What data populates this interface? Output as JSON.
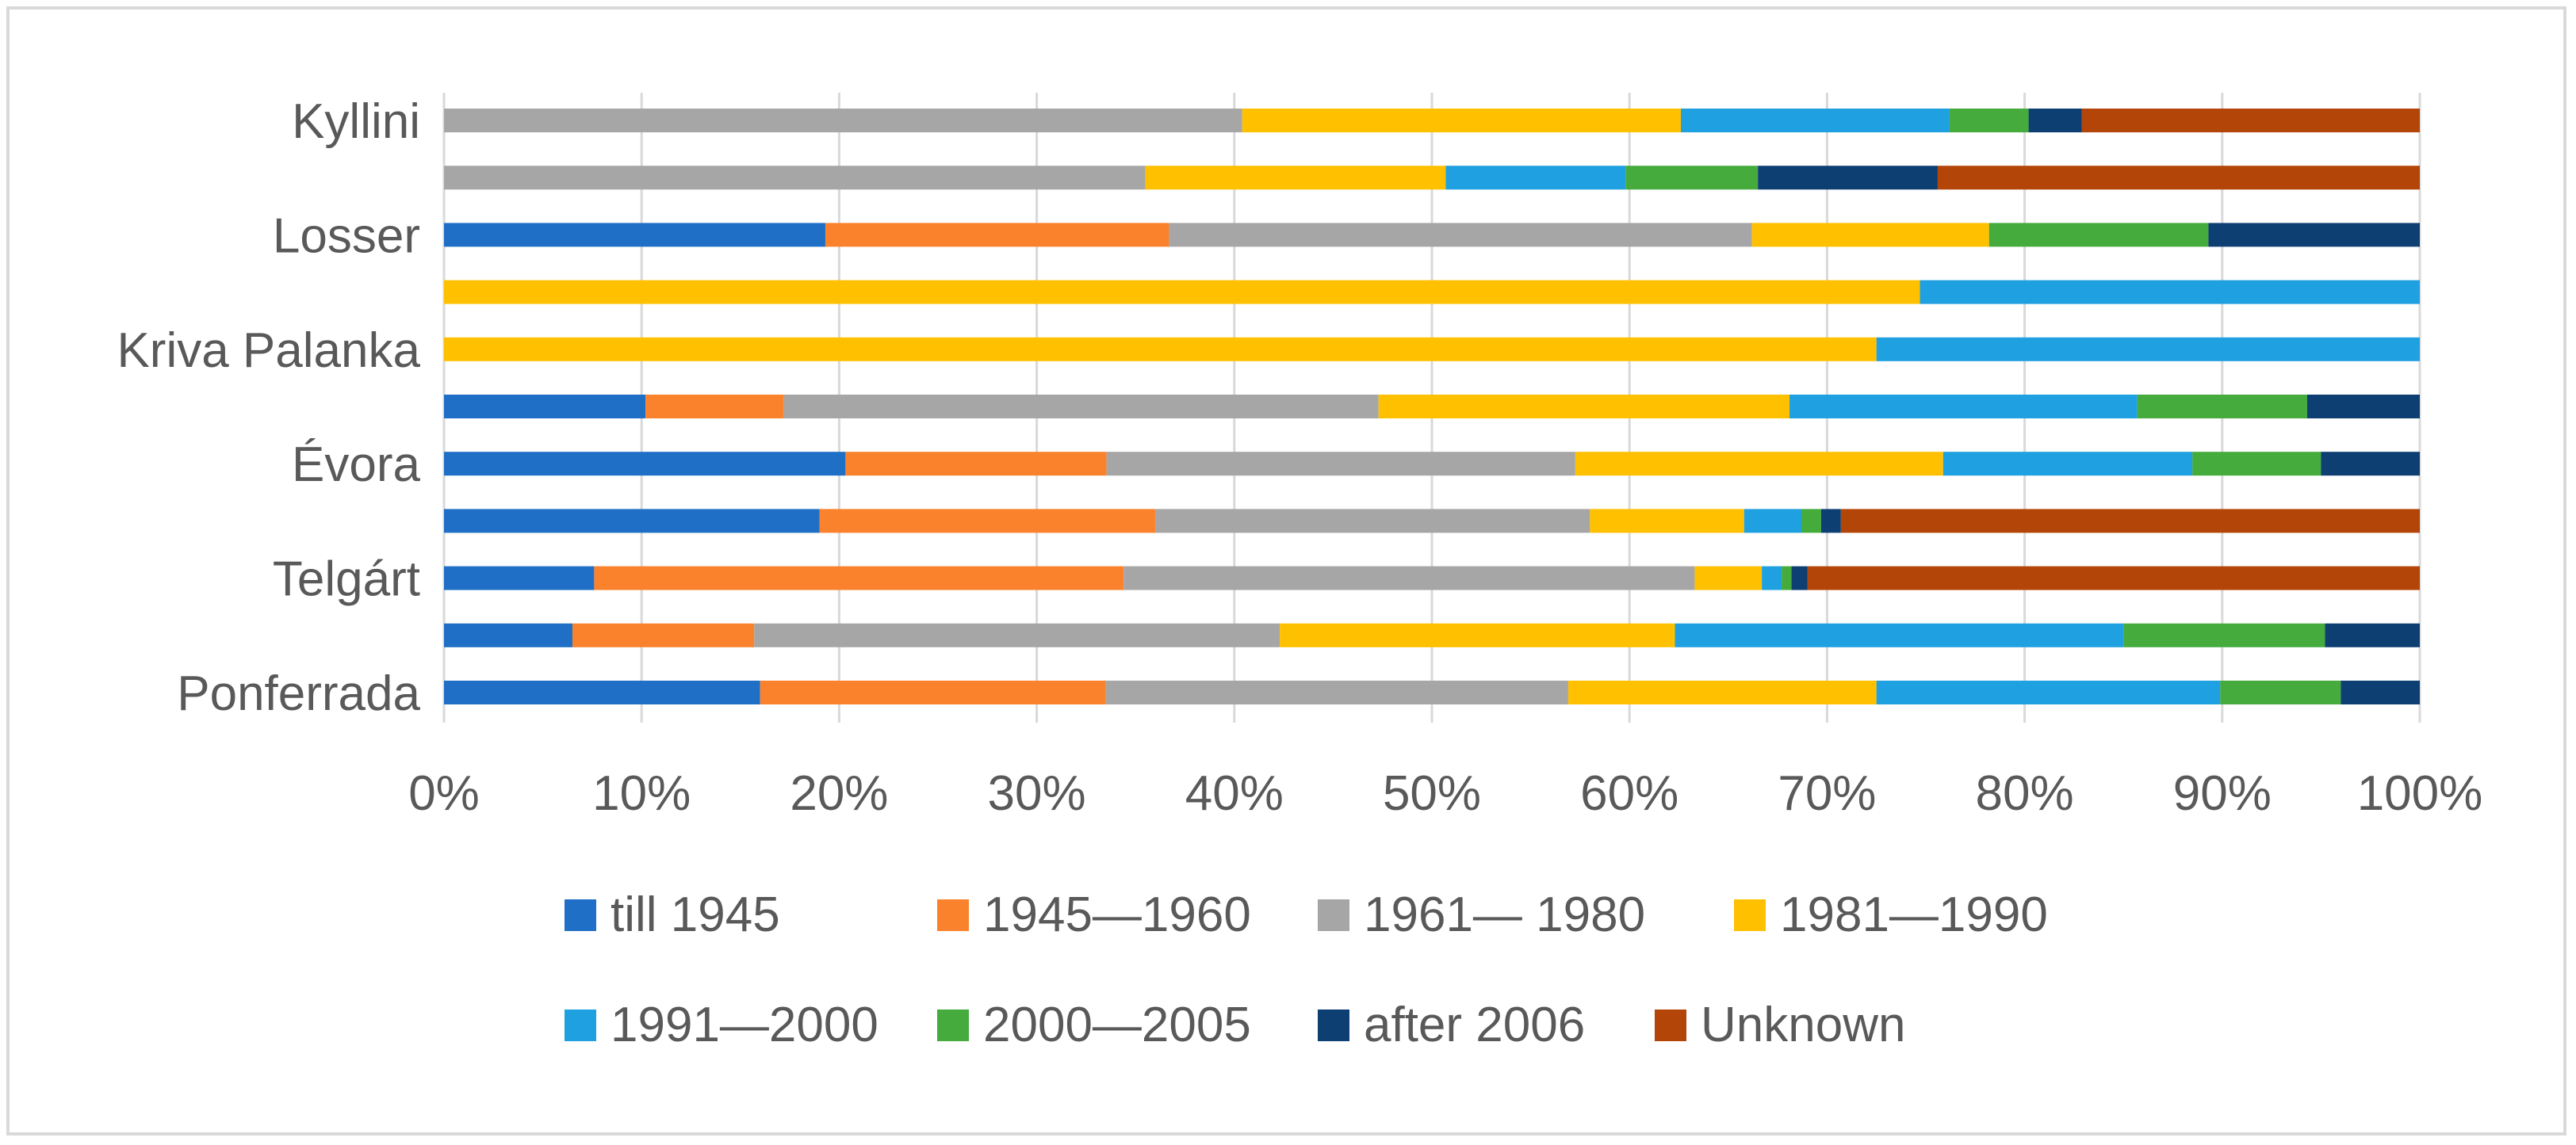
{
  "chart_data": {
    "type": "bar",
    "orientation": "horizontal",
    "stacked": "percent",
    "title": "",
    "xlabel": "",
    "ylabel": "",
    "xlim": [
      0,
      100
    ],
    "x_ticks": [
      "0%",
      "10%",
      "20%",
      "30%",
      "40%",
      "50%",
      "60%",
      "70%",
      "80%",
      "90%",
      "100%"
    ],
    "grid": true,
    "legend_position": "bottom",
    "categories": [
      "Ponferrada",
      "",
      "Telgárt",
      "",
      "Évora",
      "",
      "Kriva Palanka",
      "",
      "Losser",
      "",
      "Kyllini"
    ],
    "series": [
      {
        "name": "till 1945",
        "color": "#1f6fc6",
        "values": [
          16.0,
          6.5,
          7.6,
          19.0,
          20.3,
          10.2,
          0,
          0,
          19.3,
          0,
          0
        ]
      },
      {
        "name": "1945—1960",
        "color": "#fb822c",
        "values": [
          17.5,
          9.2,
          26.8,
          17.0,
          13.2,
          7.0,
          0,
          0,
          17.4,
          0,
          0
        ]
      },
      {
        "name": "1961— 1980",
        "color": "#a6a6a6",
        "values": [
          23.4,
          26.6,
          28.9,
          22.0,
          23.7,
          30.1,
          0,
          0,
          29.5,
          35.5,
          40.4
        ]
      },
      {
        "name": "1981—1990",
        "color": "#ffc000",
        "values": [
          15.6,
          20.0,
          3.4,
          7.8,
          18.6,
          20.8,
          72.5,
          74.7,
          12.0,
          15.2,
          22.2
        ]
      },
      {
        "name": "1991—2000",
        "color": "#1fa0e0",
        "values": [
          17.4,
          22.7,
          1.0,
          2.9,
          12.6,
          17.6,
          27.5,
          25.3,
          0,
          9.1,
          13.6
        ]
      },
      {
        "name": "2000—2005",
        "color": "#44ab3c",
        "values": [
          6.1,
          10.2,
          0.5,
          1.0,
          6.5,
          8.6,
          0,
          0,
          11.1,
          6.7,
          4.0
        ]
      },
      {
        "name": "after 2006",
        "color": "#0d3f73",
        "values": [
          4.0,
          4.8,
          0.8,
          1.0,
          5.0,
          5.7,
          0,
          0,
          10.7,
          9.1,
          2.7
        ]
      },
      {
        "name": "Unknown",
        "color": "#b34508",
        "values": [
          0,
          0,
          31.0,
          29.3,
          0,
          0,
          0,
          0,
          0,
          24.4,
          17.1
        ]
      }
    ]
  }
}
